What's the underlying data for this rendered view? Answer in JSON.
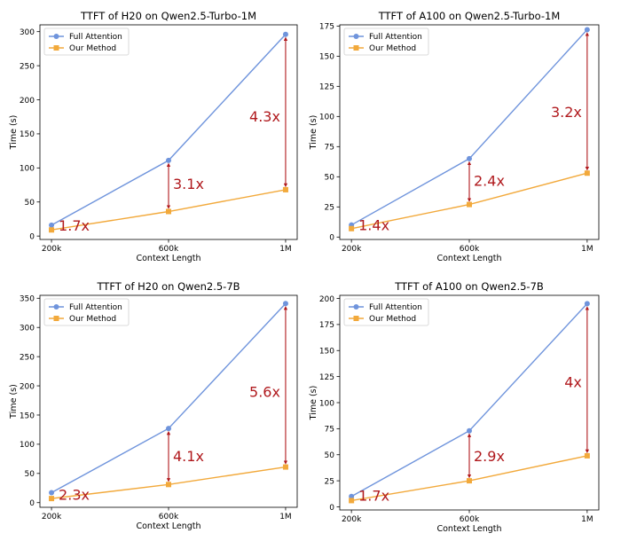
{
  "colors": {
    "full_attention": "#6f94dc",
    "our_method": "#f2a93b",
    "annotation": "#b0191d",
    "axis": "#000000"
  },
  "chart_data": [
    {
      "type": "line",
      "title": "TTFT of H20 on Qwen2.5-Turbo-1M",
      "xlabel": "Context Length",
      "ylabel": "Time (s)",
      "categories": [
        "200k",
        "600k",
        "1M"
      ],
      "ylim": [
        -5,
        310
      ],
      "yticks": [
        0,
        50,
        100,
        150,
        200,
        250,
        300
      ],
      "legend": "top-left",
      "grid": false,
      "series": [
        {
          "name": "Full Attention",
          "values": [
            16,
            111,
            296
          ]
        },
        {
          "name": "Our Method",
          "values": [
            9,
            36,
            68
          ]
        }
      ],
      "annotations": [
        {
          "text": "1.7x",
          "x_index": 0,
          "y": 16,
          "arrow": false
        },
        {
          "text": "3.1x",
          "x_index": 1,
          "y": 77,
          "arrow": true
        },
        {
          "text": "4.3x",
          "x_index": 2,
          "y": 176,
          "arrow": true
        }
      ]
    },
    {
      "type": "line",
      "title": "TTFT of A100 on Qwen2.5-Turbo-1M",
      "xlabel": "Context Length",
      "ylabel": "Time (s)",
      "categories": [
        "200k",
        "600k",
        "1M"
      ],
      "ylim": [
        -2,
        176
      ],
      "yticks": [
        0,
        25,
        50,
        75,
        100,
        125,
        150,
        175
      ],
      "legend": "top-left",
      "grid": false,
      "series": [
        {
          "name": "Full Attention",
          "values": [
            10,
            65,
            172
          ]
        },
        {
          "name": "Our Method",
          "values": [
            7,
            27,
            53
          ]
        }
      ],
      "annotations": [
        {
          "text": "1.4x",
          "x_index": 0,
          "y": 10,
          "arrow": false
        },
        {
          "text": "2.4x",
          "x_index": 1,
          "y": 47,
          "arrow": true
        },
        {
          "text": "3.2x",
          "x_index": 2,
          "y": 104,
          "arrow": true
        }
      ]
    },
    {
      "type": "line",
      "title": "TTFT of H20 on Qwen2.5-7B",
      "xlabel": "Context Length",
      "ylabel": "Time (s)",
      "categories": [
        "200k",
        "600k",
        "1M"
      ],
      "ylim": [
        -8,
        355
      ],
      "yticks": [
        0,
        50,
        100,
        150,
        200,
        250,
        300,
        350
      ],
      "legend": "top-left",
      "grid": false,
      "series": [
        {
          "name": "Full Attention",
          "values": [
            17,
            127,
            341
          ]
        },
        {
          "name": "Our Method",
          "values": [
            7,
            31,
            61
          ]
        }
      ],
      "annotations": [
        {
          "text": "2.3x",
          "x_index": 0,
          "y": 14,
          "arrow": false
        },
        {
          "text": "4.1x",
          "x_index": 1,
          "y": 80,
          "arrow": true
        },
        {
          "text": "5.6x",
          "x_index": 2,
          "y": 190,
          "arrow": true
        }
      ]
    },
    {
      "type": "line",
      "title": "TTFT of A100 on Qwen2.5-7B",
      "xlabel": "Context Length",
      "ylabel": "Time (s)",
      "categories": [
        "200k",
        "600k",
        "1M"
      ],
      "ylim": [
        -3,
        203
      ],
      "yticks": [
        0,
        25,
        50,
        75,
        100,
        125,
        150,
        175,
        200
      ],
      "legend": "top-left",
      "grid": false,
      "series": [
        {
          "name": "Full Attention",
          "values": [
            10,
            73,
            195
          ]
        },
        {
          "name": "Our Method",
          "values": [
            6,
            25,
            49
          ]
        }
      ],
      "annotations": [
        {
          "text": "1.7x",
          "x_index": 0,
          "y": 11,
          "arrow": false
        },
        {
          "text": "2.9x",
          "x_index": 1,
          "y": 49,
          "arrow": true
        },
        {
          "text": "4x",
          "x_index": 2,
          "y": 120,
          "arrow": true
        }
      ]
    }
  ]
}
